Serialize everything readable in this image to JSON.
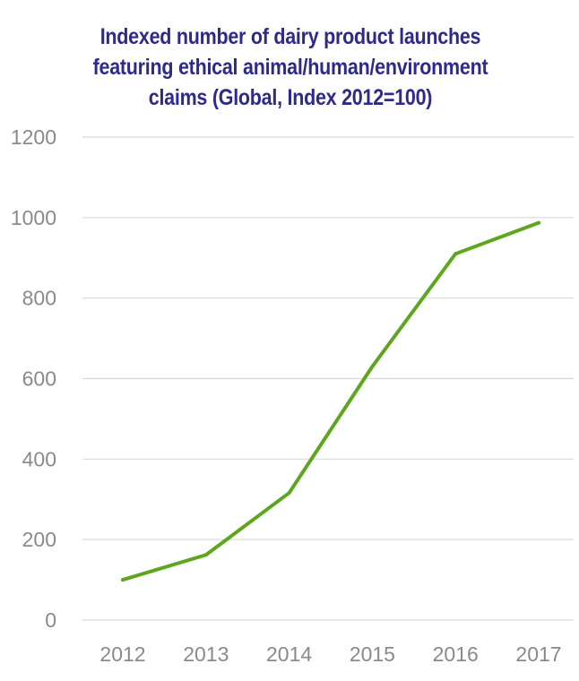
{
  "title_lines": [
    "Indexed number of dairy product launches",
    "featuring ethical animal/human/environment",
    "claims (Global, Index 2012=100)"
  ],
  "chart_data": {
    "type": "line",
    "title": "Indexed number of dairy product launches featuring ethical animal/human/environment claims (Global, Index 2012=100)",
    "xlabel": "",
    "ylabel": "",
    "categories": [
      "2012",
      "2013",
      "2014",
      "2015",
      "2016",
      "2017"
    ],
    "series": [
      {
        "values": [
          100,
          162,
          316,
          630,
          910,
          987
        ],
        "color": "#5ea61e"
      }
    ],
    "ylim": [
      0,
      1200
    ],
    "yticks": [
      0,
      200,
      400,
      600,
      800,
      1000,
      1200
    ],
    "grid": true,
    "legend": "none"
  },
  "colors": {
    "title": "#2e2a8a",
    "line": "#5ea61e",
    "grid": "#d9d9d9",
    "tick_label": "#8a8a8a"
  }
}
